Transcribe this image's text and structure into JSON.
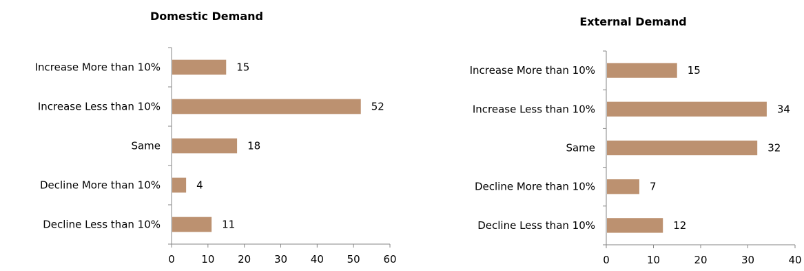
{
  "bar_color": "#bc9170",
  "chart_data": [
    {
      "type": "bar",
      "orientation": "horizontal",
      "title": "Domestic Demand",
      "categories": [
        "Increase More than 10%",
        "Increase Less than 10%",
        "Same",
        "Decline More than 10%",
        "Decline Less than 10%"
      ],
      "values": [
        15,
        52,
        18,
        4,
        11
      ],
      "xlim": [
        0,
        60
      ],
      "xticks": [
        "0",
        "10",
        "20",
        "30",
        "40",
        "50",
        "60"
      ],
      "grid": false,
      "legend": "none"
    },
    {
      "type": "bar",
      "orientation": "horizontal",
      "title": "External Demand",
      "categories": [
        "Increase More than 10%",
        "Increase Less than 10%",
        "Same",
        "Decline More than 10%",
        "Decline Less than 10%"
      ],
      "values": [
        15,
        34,
        32,
        7,
        12
      ],
      "xlim": [
        0,
        40
      ],
      "xticks": [
        "0",
        "10",
        "20",
        "30",
        "40"
      ],
      "grid": false,
      "legend": "none"
    }
  ]
}
